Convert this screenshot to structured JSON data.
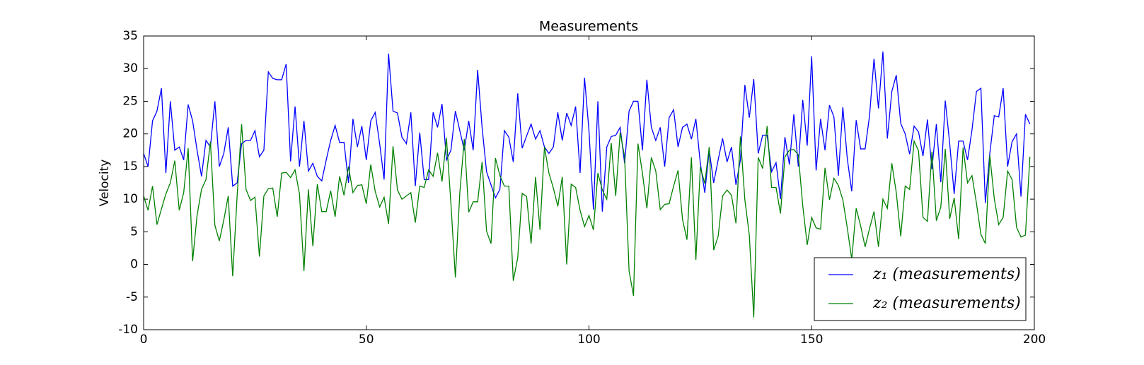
{
  "chart_data": {
    "type": "line",
    "title": "Measurements",
    "y_label": "Velocity",
    "x": [
      0,
      1,
      2,
      3,
      4,
      5,
      6,
      7,
      8,
      9,
      10,
      11,
      12,
      13,
      14,
      15,
      16,
      17,
      18,
      19,
      20,
      21,
      22,
      23,
      24,
      25,
      26,
      27,
      28,
      29,
      30,
      31,
      32,
      33,
      34,
      35,
      36,
      37,
      38,
      39,
      40,
      41,
      42,
      43,
      44,
      45,
      46,
      47,
      48,
      49,
      50,
      51,
      52,
      53,
      54,
      55,
      56,
      57,
      58,
      59,
      60,
      61,
      62,
      63,
      64,
      65,
      66,
      67,
      68,
      69,
      70,
      71,
      72,
      73,
      74,
      75,
      76,
      77,
      78,
      79,
      80,
      81,
      82,
      83,
      84,
      85,
      86,
      87,
      88,
      89,
      90,
      91,
      92,
      93,
      94,
      95,
      96,
      97,
      98,
      99,
      100,
      101,
      102,
      103,
      104,
      105,
      106,
      107,
      108,
      109,
      110,
      111,
      112,
      113,
      114,
      115,
      116,
      117,
      118,
      119,
      120,
      121,
      122,
      123,
      124,
      125,
      126,
      127,
      128,
      129,
      130,
      131,
      132,
      133,
      134,
      135,
      136,
      137,
      138,
      139,
      140,
      141,
      142,
      143,
      144,
      145,
      146,
      147,
      148,
      149,
      150,
      151,
      152,
      153,
      154,
      155,
      156,
      157,
      158,
      159,
      160,
      161,
      162,
      163,
      164,
      165,
      166,
      167,
      168,
      169,
      170,
      171,
      172,
      173,
      174,
      175,
      176,
      177,
      178,
      179,
      180,
      181,
      182,
      183,
      184,
      185,
      186,
      187,
      188,
      189,
      190,
      191,
      192,
      193,
      194,
      195,
      196,
      197,
      198,
      199
    ],
    "series": [
      {
        "name": "z₁ (measurements)",
        "color": "#0000ff",
        "values": [
          17,
          15,
          22,
          23.5,
          27,
          14,
          25,
          17.5,
          18,
          16,
          24.5,
          22,
          17.5,
          13.5,
          19,
          18,
          25,
          15,
          17,
          21,
          12,
          12.5,
          18.5,
          19,
          19,
          20.5,
          16.5,
          17.5,
          29.5,
          28.5,
          28.3,
          28.3,
          30.7,
          15.8,
          24.2,
          15,
          22,
          14.3,
          15.5,
          13.5,
          12.8,
          16,
          19,
          21.3,
          18.7,
          18.7,
          12.5,
          22.3,
          18,
          21.2,
          16,
          22,
          23.3,
          18.5,
          13,
          32.3,
          23.5,
          23.2,
          19.5,
          18.5,
          23.3,
          12,
          20.2,
          13,
          13,
          23.3,
          21,
          24.6,
          16,
          17.5,
          23.5,
          20.5,
          17.5,
          22,
          17.5,
          29.8,
          21,
          14.2,
          12.2,
          10.2,
          11.5,
          20.5,
          19.5,
          15.7,
          26.2,
          17.8,
          19.7,
          21.5,
          19.2,
          20.5,
          18,
          17,
          18,
          23.3,
          19,
          23.2,
          21.3,
          24.2,
          14,
          28.6,
          20.5,
          8.4,
          25,
          8.1,
          18,
          19.6,
          19.8,
          21,
          15.5,
          23.5,
          25,
          25,
          17.5,
          28.3,
          21,
          19,
          21,
          15,
          22.5,
          23.7,
          18,
          21,
          21.5,
          19.2,
          22.3,
          15.5,
          11,
          17.5,
          12.5,
          16,
          19.3,
          15.7,
          18,
          12.2,
          16,
          27.5,
          22.5,
          28.4,
          17,
          19.8,
          19.8,
          14.2,
          15.6,
          10,
          19.5,
          15.3,
          23,
          15,
          25.2,
          18.2,
          31.9,
          14.4,
          22.3,
          17.5,
          24.4,
          22.6,
          13.6,
          24.1,
          16.2,
          11.2,
          22.1,
          17.7,
          17.7,
          22.8,
          31.5,
          23.9,
          32.6,
          19.3,
          26.5,
          29,
          21.6,
          20,
          16.9,
          21.2,
          20.3,
          16.6,
          22.2,
          14.6,
          21.5,
          12.6,
          25.1,
          18.5,
          10.8,
          18.9,
          18.9,
          16,
          20.6,
          26.5,
          27,
          9.4,
          17,
          22.8,
          22.6,
          27,
          15,
          18.8,
          20,
          10.4,
          23,
          21.5
        ]
      },
      {
        "name": "z₂ (measurements)",
        "color": "#008000",
        "values": [
          10.5,
          8.3,
          12,
          6.1,
          8.5,
          10.8,
          12.5,
          15.9,
          8.3,
          11,
          17.8,
          0.5,
          7.5,
          11.5,
          13,
          18.8,
          6,
          3.6,
          6.8,
          10.5,
          -1.8,
          10.5,
          21.5,
          11.5,
          9.8,
          10.3,
          1.2,
          10.5,
          11.6,
          11.7,
          7.3,
          14,
          14.1,
          13.3,
          14.5,
          10.8,
          -1,
          11.5,
          2.8,
          12.3,
          8.1,
          8.1,
          11.3,
          7.3,
          13.5,
          10.6,
          15,
          11,
          12.1,
          12.2,
          9.3,
          15.3,
          11.2,
          8.8,
          10.3,
          6.2,
          18.1,
          11.4,
          10,
          10.5,
          11,
          6.4,
          12,
          11.8,
          14.5,
          13.5,
          17.1,
          12.7,
          19.4,
          9.3,
          -2,
          11,
          19.2,
          8,
          9.6,
          9.6,
          15.7,
          5.1,
          3.2,
          16.3,
          13.6,
          12,
          12,
          -2.5,
          1,
          10.9,
          10.4,
          3.2,
          13.4,
          5.3,
          18,
          14,
          11.7,
          8.9,
          13.4,
          0,
          12.3,
          11.8,
          8.3,
          5.8,
          7.5,
          5.3,
          14,
          11.4,
          10,
          18.6,
          10.5,
          20.2,
          16.5,
          -1,
          -4.8,
          18.5,
          14,
          8.6,
          16.4,
          14.3,
          8.4,
          9.2,
          9.3,
          12,
          14.4,
          6.9,
          3.8,
          16.4,
          0.7,
          14.9,
          12.4,
          18,
          2.2,
          4.3,
          10.5,
          11.4,
          10.6,
          6.3,
          19.6,
          9.9,
          4.5,
          -8.1,
          16.4,
          14.7,
          21.2,
          11.8,
          11.8,
          7.8,
          16.5,
          17.5,
          17.6,
          16.8,
          9,
          3,
          7.2,
          5.6,
          5.4,
          14.8,
          9.9,
          13.2,
          12.1,
          9.9,
          5.6,
          0.8,
          8.6,
          5.9,
          2.7,
          5.5,
          8.1,
          2.7,
          10,
          8.6,
          15.5,
          11,
          4.3,
          12,
          11.5,
          18.9,
          17.4,
          7.2,
          6.6,
          17.3,
          6.7,
          8.8,
          17.7,
          7,
          10.2,
          3.9,
          17.9,
          12.5,
          13.6,
          9.4,
          4.6,
          3.2,
          16.7,
          10.1,
          6.1,
          7.2,
          14.3,
          13,
          5.7,
          4.2,
          4.5,
          16.5
        ]
      }
    ],
    "xlim": [
      0,
      200
    ],
    "xticks": [
      0,
      50,
      100,
      150,
      200
    ],
    "ylim": [
      -10,
      35
    ],
    "yticks": [
      -10,
      -5,
      0,
      5,
      10,
      15,
      20,
      25,
      30,
      35
    ],
    "legend": "lower right",
    "grid": false
  }
}
